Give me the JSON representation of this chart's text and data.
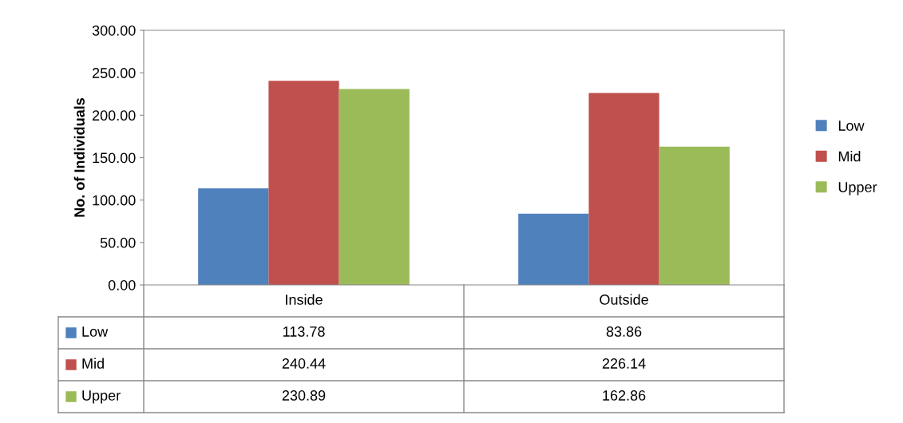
{
  "chart_data": {
    "type": "bar",
    "ylabel": "No. of Individuals",
    "categories": [
      "Inside",
      "Outside"
    ],
    "series": [
      {
        "name": "Low",
        "color": "#4f81bd",
        "values": [
          113.78,
          83.86
        ]
      },
      {
        "name": "Mid",
        "color": "#c0504d",
        "values": [
          240.44,
          226.14
        ]
      },
      {
        "name": "Upper",
        "color": "#9bbb59",
        "values": [
          230.89,
          162.86
        ]
      }
    ],
    "ylim": [
      0,
      300
    ],
    "yticks": [
      {
        "value": 0,
        "label": "0.00"
      },
      {
        "value": 50,
        "label": "50.00"
      },
      {
        "value": 100,
        "label": "100.00"
      },
      {
        "value": 150,
        "label": "150.00"
      },
      {
        "value": 200,
        "label": "200.00"
      },
      {
        "value": 250,
        "label": "250.00"
      },
      {
        "value": 300,
        "label": "300.00"
      }
    ],
    "grid": false,
    "legend": "right",
    "data_labels": true
  }
}
